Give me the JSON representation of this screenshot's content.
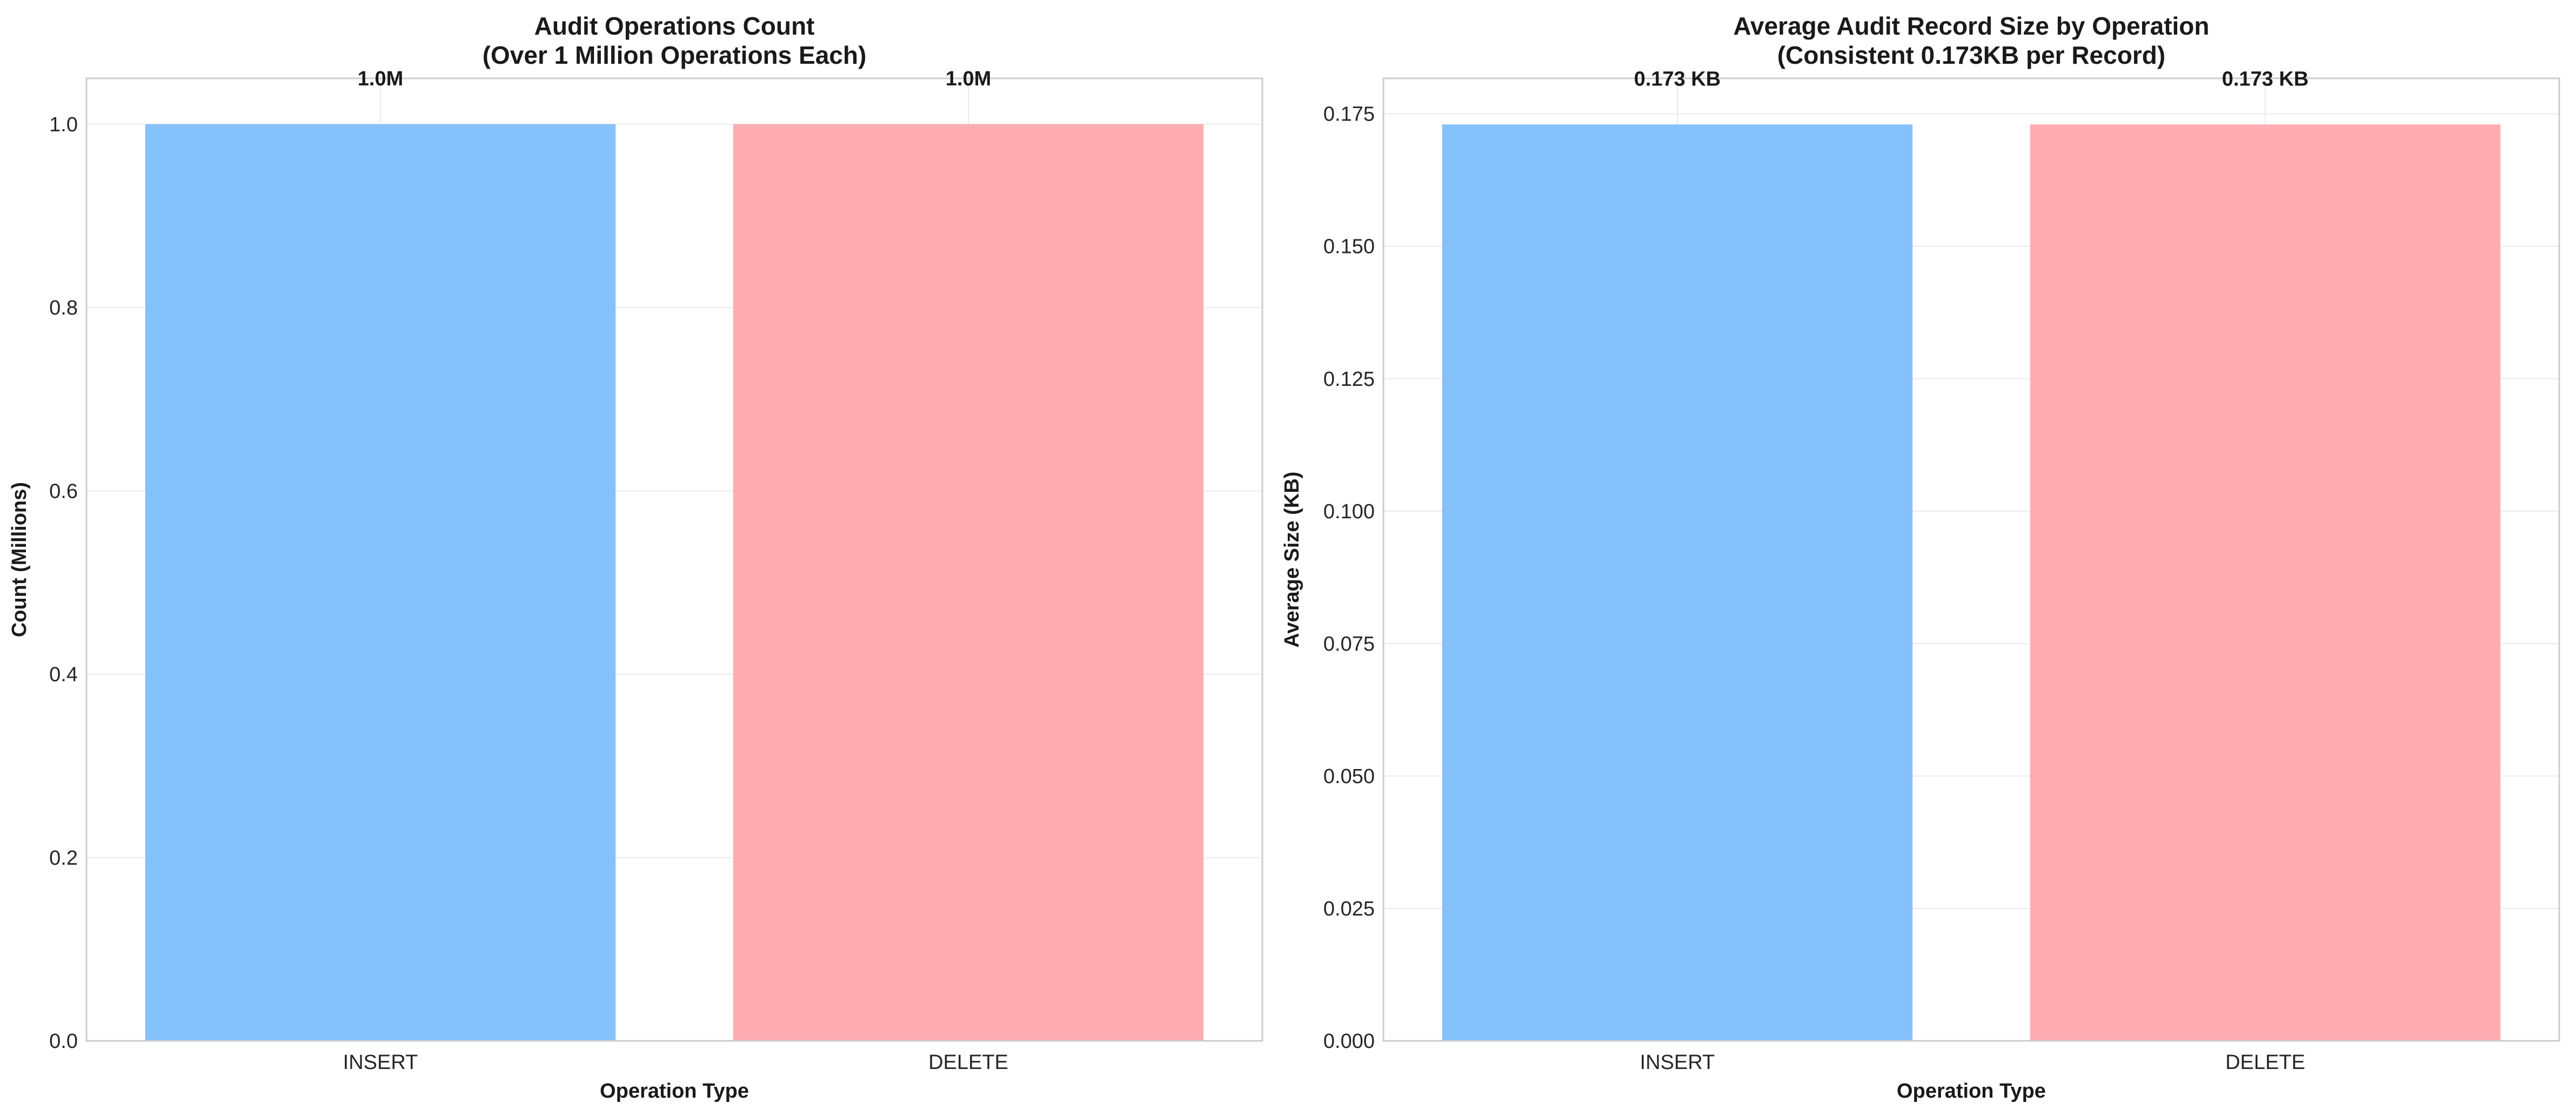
{
  "chart_data": [
    {
      "type": "bar",
      "title_lines": [
        "Audit Operations Count",
        "(Over 1 Million Operations Each)"
      ],
      "xlabel": "Operation Type",
      "ylabel": "Count (Millions)",
      "categories": [
        "INSERT",
        "DELETE"
      ],
      "values": [
        1.0,
        1.0
      ],
      "data_labels": [
        "1.0M",
        "1.0M"
      ],
      "colors": [
        "#85c1fb",
        "#ffadb2"
      ],
      "ylim": [
        0,
        1.05
      ],
      "yticks": [
        0.0,
        0.2,
        0.4,
        0.6,
        0.8,
        1.0
      ],
      "ytick_labels": [
        "0.0",
        "0.2",
        "0.4",
        "0.6",
        "0.8",
        "1.0"
      ],
      "grid": true,
      "legend": "none"
    },
    {
      "type": "bar",
      "title_lines": [
        "Average Audit Record Size by Operation",
        "(Consistent 0.173KB per Record)"
      ],
      "xlabel": "Operation Type",
      "ylabel": "Average Size (KB)",
      "categories": [
        "INSERT",
        "DELETE"
      ],
      "values": [
        0.173,
        0.173
      ],
      "data_labels": [
        "0.173 KB",
        "0.173 KB"
      ],
      "colors": [
        "#85c1fb",
        "#ffadb2"
      ],
      "ylim": [
        0,
        0.1817
      ],
      "yticks": [
        0.0,
        0.025,
        0.05,
        0.075,
        0.1,
        0.125,
        0.15,
        0.175
      ],
      "ytick_labels": [
        "0.000",
        "0.025",
        "0.050",
        "0.075",
        "0.100",
        "0.125",
        "0.150",
        "0.175"
      ],
      "grid": true,
      "legend": "none"
    }
  ]
}
